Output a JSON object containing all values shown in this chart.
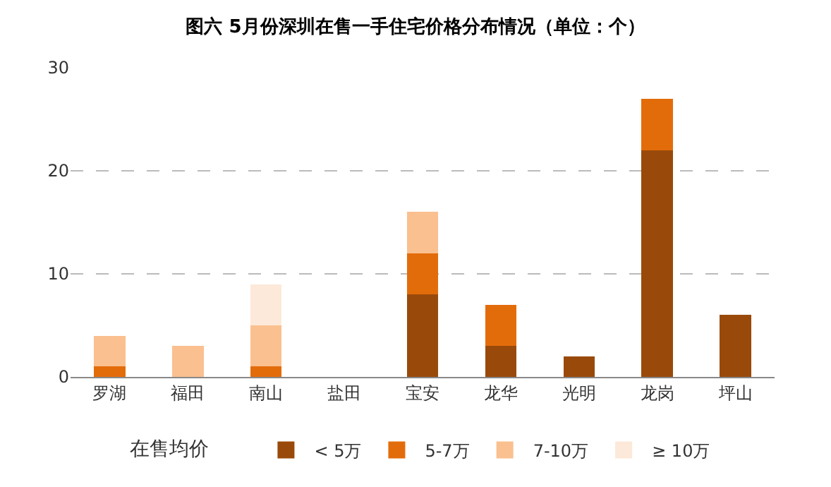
{
  "chart_data": {
    "type": "bar",
    "title": "图六 5月份深圳在售一手住宅价格分布情况（单位：个）",
    "categories": [
      "罗湖",
      "福田",
      "南山",
      "盐田",
      "宝安",
      "龙华",
      "光明",
      "龙岗",
      "坪山"
    ],
    "stacked": true,
    "legend_title": "在售均价",
    "legend": "bottom",
    "grid": "y",
    "ylim": [
      0,
      30
    ],
    "yticks": [
      0,
      10,
      20,
      30
    ],
    "series": [
      {
        "name": "< 5万",
        "color": "#994a0a",
        "values": [
          0,
          0,
          0,
          0,
          8,
          3,
          2,
          22,
          6
        ]
      },
      {
        "name": "5-7万",
        "color": "#e36c0a",
        "values": [
          1,
          0,
          1,
          0,
          4,
          4,
          0,
          5,
          0
        ]
      },
      {
        "name": "7-10万",
        "color": "#fac090",
        "values": [
          3,
          3,
          4,
          0,
          4,
          0,
          0,
          0,
          0
        ]
      },
      {
        "name": "≥ 10万",
        "color": "#fde9d9",
        "values": [
          0,
          0,
          4,
          0,
          0,
          0,
          0,
          0,
          0
        ]
      }
    ]
  }
}
